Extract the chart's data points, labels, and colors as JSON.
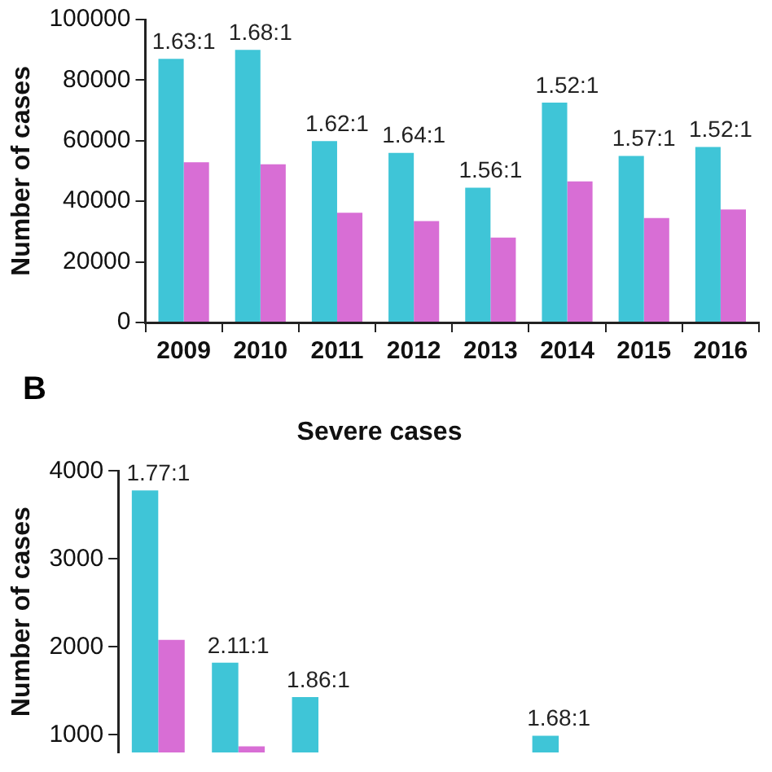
{
  "chart_data": [
    {
      "type": "bar",
      "ylabel": "Number of cases",
      "categories": [
        "2009",
        "2010",
        "2011",
        "2012",
        "2013",
        "2014",
        "2015",
        "2016"
      ],
      "ylim": [
        0,
        100000
      ],
      "yticks": [
        0,
        20000,
        40000,
        60000,
        80000,
        100000
      ],
      "grid": false,
      "series": [
        {
          "color": "#3fc5d7",
          "values": [
            87000,
            90000,
            59900,
            56000,
            44500,
            72600,
            55000,
            57900
          ],
          "value_labels": [
            "1.63:1",
            "1.68:1",
            "1.62:1",
            "1.64:1",
            "1.56:1",
            "1.52:1",
            "1.57:1",
            "1.52:1"
          ]
        },
        {
          "color": "#d86ed5",
          "values": [
            52900,
            52200,
            36200,
            33500,
            28000,
            46600,
            34500,
            37300
          ]
        }
      ]
    },
    {
      "type": "bar",
      "title": "Severe cases",
      "ylabel": "Number of cases",
      "annotations": [
        "B"
      ],
      "categories": [
        null,
        null,
        null,
        null,
        null,
        null,
        null,
        null
      ],
      "ylim": [
        800,
        4000
      ],
      "yticks": [
        1000,
        2000,
        3000,
        4000
      ],
      "grid": false,
      "tick_labels": "y",
      "series": [
        {
          "color": "#3fc5d7",
          "values": [
            3780,
            1820,
            1430,
            null,
            null,
            990,
            null,
            null
          ],
          "value_labels": [
            "1.77:1",
            "2.11:1",
            "1.86:1",
            null,
            null,
            "1.68:1",
            null,
            null
          ]
        },
        {
          "color": "#d86ed5",
          "values": [
            2080,
            870,
            null,
            null,
            null,
            null,
            null,
            null
          ]
        }
      ]
    }
  ]
}
